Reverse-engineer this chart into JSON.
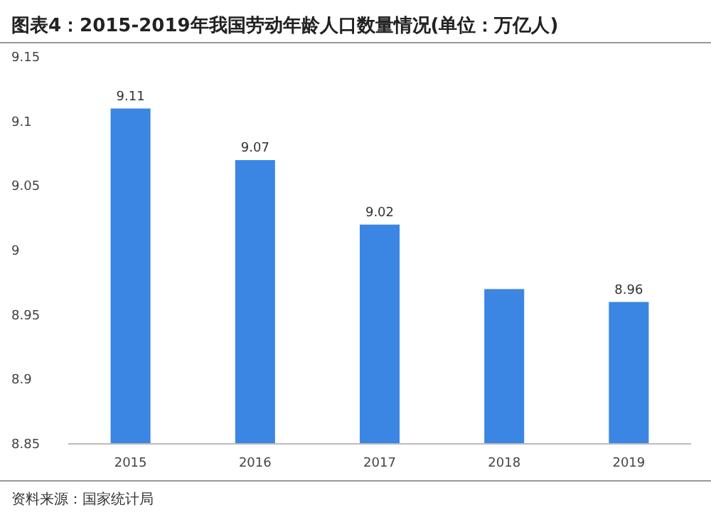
{
  "chart_data": {
    "type": "bar",
    "title": "图表4：2015-2019年我国劳动年龄人口数量情况(单位：万亿人)",
    "categories": [
      "2015",
      "2016",
      "2017",
      "2018",
      "2019"
    ],
    "values": [
      9.11,
      9.07,
      9.02,
      8.97,
      8.96
    ],
    "value_labels": [
      "9.11",
      "9.07",
      "9.02",
      null,
      "8.96"
    ],
    "color": "#3b86e3",
    "ylim": [
      8.85,
      9.15
    ],
    "yticks": [
      8.85,
      8.9,
      8.95,
      9,
      9.05,
      9.1,
      9.15
    ],
    "annotations": [
      "资料来源：国家统计局"
    ]
  }
}
